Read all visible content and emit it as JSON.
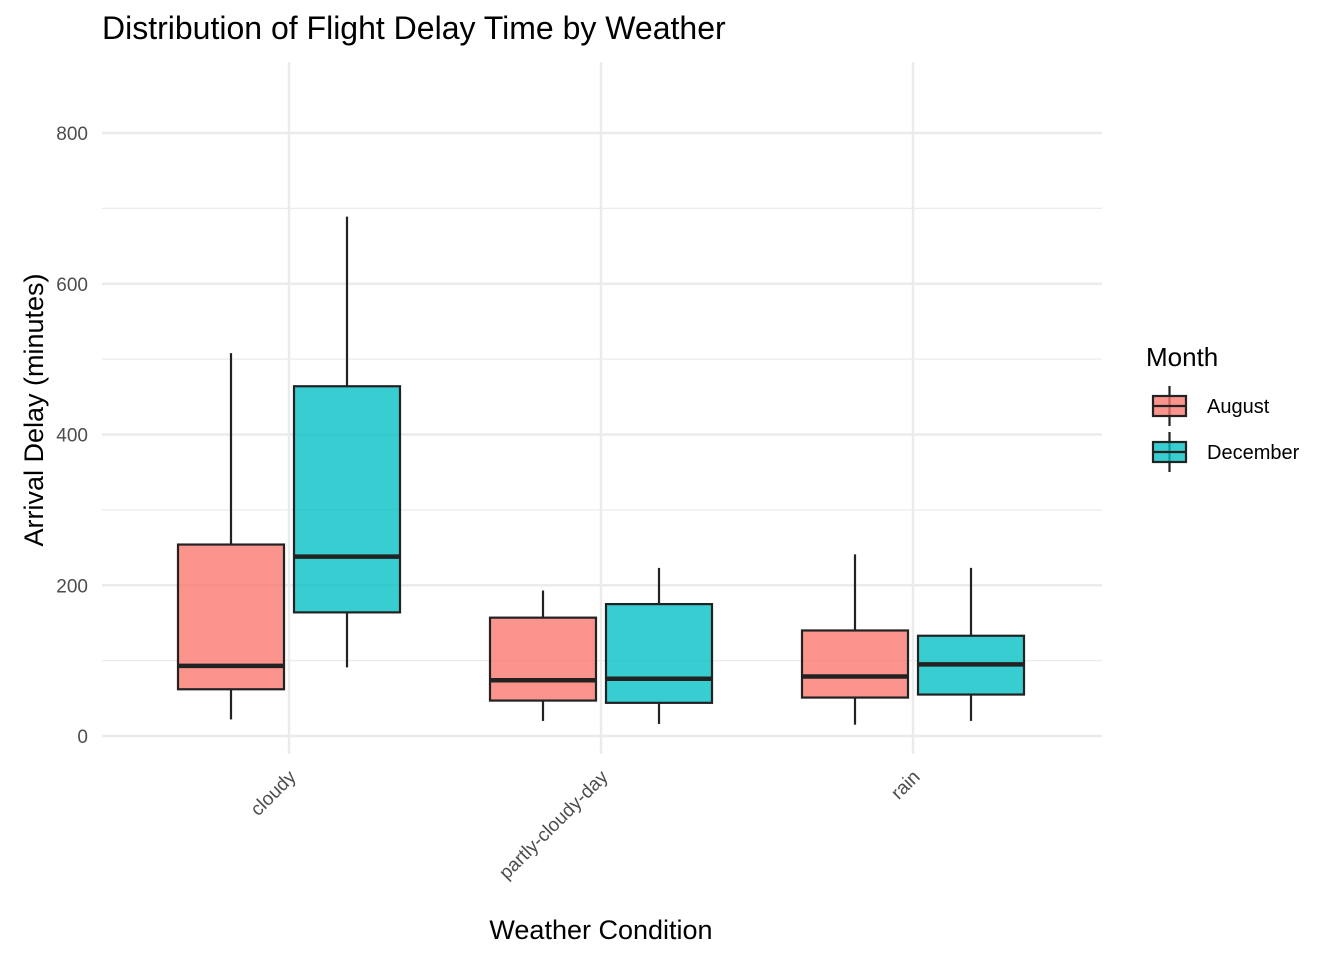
{
  "chart_data": {
    "type": "boxplot",
    "title": "Distribution of Flight Delay Time by Weather",
    "xlabel": "Weather Condition",
    "ylabel": "Arrival Delay (minutes)",
    "categories": [
      "cloudy",
      "partly-cloudy-day",
      "rain"
    ],
    "ylim": [
      -20,
      893
    ],
    "yticks": [
      0,
      200,
      400,
      600,
      800
    ],
    "grid": true,
    "legend": {
      "title": "Month",
      "position": "right"
    },
    "series": [
      {
        "name": "August",
        "color": "#F8766D",
        "boxes": [
          {
            "category": "cloudy",
            "whisker_low": 22,
            "q1": 62,
            "median": 93,
            "q3": 254,
            "whisker_high": 508
          },
          {
            "category": "partly-cloudy-day",
            "whisker_low": 20,
            "q1": 47,
            "median": 74,
            "q3": 157,
            "whisker_high": 193
          },
          {
            "category": "rain",
            "whisker_low": 15,
            "q1": 51,
            "median": 79,
            "q3": 140,
            "whisker_high": 241
          }
        ]
      },
      {
        "name": "December",
        "color": "#00BFC4",
        "boxes": [
          {
            "category": "cloudy",
            "whisker_low": 91,
            "q1": 164,
            "median": 238,
            "q3": 464,
            "whisker_high": 689
          },
          {
            "category": "partly-cloudy-day",
            "whisker_low": 16,
            "q1": 44,
            "median": 76,
            "q3": 175,
            "whisker_high": 223
          },
          {
            "category": "rain",
            "whisker_low": 20,
            "q1": 55,
            "median": 95,
            "q3": 133,
            "whisker_high": 223
          }
        ]
      }
    ]
  }
}
